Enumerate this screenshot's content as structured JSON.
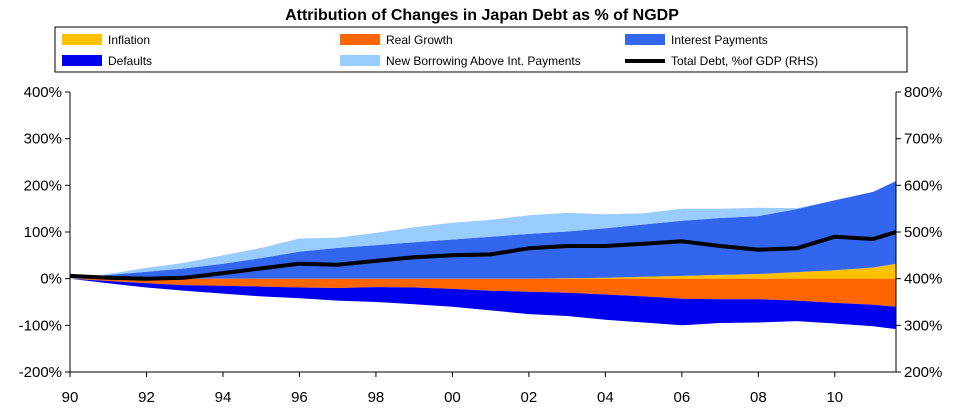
{
  "chart_data": {
    "type": "area",
    "title": "Attribution of Changes in Japan Debt as % of NGDP",
    "x": [
      1990,
      1991,
      1992,
      1993,
      1994,
      1995,
      1996,
      1997,
      1998,
      1999,
      2000,
      2001,
      2002,
      2003,
      2004,
      2005,
      2006,
      2007,
      2008,
      2009,
      2010,
      2011,
      2011.6
    ],
    "x_ticks": [
      "90",
      "92",
      "94",
      "96",
      "98",
      "00",
      "02",
      "04",
      "06",
      "08",
      "10"
    ],
    "x_tick_values": [
      1990,
      1992,
      1994,
      1996,
      1998,
      2000,
      2002,
      2004,
      2006,
      2008,
      2010
    ],
    "ylim_left": [
      -200,
      400
    ],
    "ylim_right": [
      200,
      800
    ],
    "y_ticks_left": [
      "400%",
      "300%",
      "200%",
      "100%",
      "0%",
      "-100%",
      "-200%"
    ],
    "y_ticks_right": [
      "800%",
      "700%",
      "600%",
      "500%",
      "400%",
      "300%",
      "200%"
    ],
    "stacking": "positive contributions stack upward from 0 (Inflation, Interest Payments, New Borrowing Above Int. Payments); negative contributions stack downward from 0 (Real Growth, Defaults); Total Debt plotted on right axis",
    "series": [
      {
        "name": "Inflation",
        "color": "#ffc000",
        "axis": "left",
        "values": [
          0,
          0,
          0,
          0,
          0,
          0,
          0,
          0,
          0,
          0,
          0,
          0,
          0,
          1,
          2,
          4,
          6,
          8,
          10,
          14,
          18,
          24,
          32
        ]
      },
      {
        "name": "Real Growth",
        "color": "#ff6600",
        "axis": "left",
        "values": [
          0,
          -5,
          -10,
          -14,
          -15,
          -17,
          -19,
          -20,
          -18,
          -19,
          -22,
          -26,
          -28,
          -30,
          -34,
          -38,
          -43,
          -44,
          -44,
          -47,
          -52,
          -56,
          -60
        ]
      },
      {
        "name": "Interest Payments",
        "color": "#3366ee",
        "axis": "left",
        "values": [
          0,
          8,
          15,
          22,
          32,
          44,
          58,
          66,
          72,
          78,
          84,
          90,
          96,
          100,
          106,
          112,
          118,
          122,
          124,
          135,
          150,
          162,
          177
        ]
      },
      {
        "name": "Defaults",
        "color": "#0000ee",
        "axis": "left",
        "values": [
          0,
          -5,
          -9,
          -12,
          -17,
          -21,
          -23,
          -27,
          -32,
          -36,
          -38,
          -42,
          -48,
          -50,
          -54,
          -56,
          -57,
          -51,
          -50,
          -44,
          -44,
          -46,
          -48
        ]
      },
      {
        "name": "New Borrowing Above Int. Payments",
        "color": "#99ccff",
        "axis": "left",
        "values": [
          0,
          2,
          8,
          12,
          18,
          22,
          28,
          22,
          26,
          32,
          36,
          36,
          40,
          40,
          30,
          24,
          26,
          20,
          18,
          2,
          0,
          0,
          0
        ]
      },
      {
        "name": "Total Debt, %of GDP (RHS)",
        "color": "#000000",
        "axis": "right",
        "values": [
          406,
          402,
          400,
          402,
          412,
          422,
          432,
          430,
          438,
          446,
          450,
          452,
          465,
          470,
          470,
          475,
          480,
          470,
          462,
          465,
          490,
          485,
          500
        ]
      }
    ],
    "legend": {
      "placement": "top",
      "entries": [
        "Inflation",
        "Real Growth",
        "Interest Payments",
        "Defaults",
        "New Borrowing Above Int. Payments",
        "Total Debt, %of GDP (RHS)"
      ]
    },
    "grid": false
  }
}
